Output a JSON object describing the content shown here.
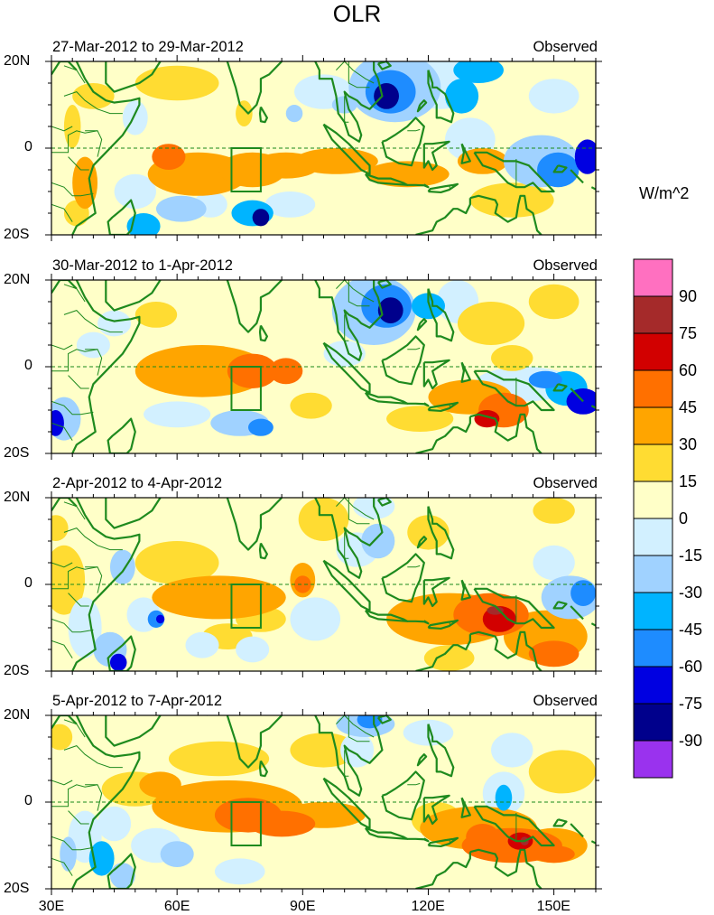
{
  "figure": {
    "title": "OLR",
    "units": "W/m^2",
    "lat_labels": [
      "20N",
      "0",
      "20S"
    ],
    "lon_labels": [
      "30E",
      "60E",
      "90E",
      "120E",
      "150E"
    ]
  },
  "colorbar": {
    "labels": [
      "90",
      "75",
      "60",
      "45",
      "30",
      "15",
      "0",
      "-15",
      "-30",
      "-45",
      "-60",
      "-75",
      "-90"
    ],
    "colors": [
      "#ff70c0",
      "#a52a2a",
      "#d20000",
      "#ff7000",
      "#ffa500",
      "#ffdc32",
      "#ffffc8",
      "#d2f0ff",
      "#a0d2ff",
      "#00b4ff",
      "#1e8cff",
      "#0000e1",
      "#00008c",
      "#9a32ee"
    ]
  },
  "panels": [
    {
      "date": "27-Mar-2012 to 29-Mar-2012",
      "tag": "Observed",
      "blobs": [
        [
          35,
          5,
          2,
          5,
          15
        ],
        [
          38,
          -8,
          3,
          6,
          30
        ],
        [
          50,
          7,
          3,
          4,
          -15
        ],
        [
          50,
          -10,
          5,
          4,
          -15
        ],
        [
          52,
          -18,
          4,
          3,
          -45
        ],
        [
          65,
          -6,
          12,
          5,
          30
        ],
        [
          58,
          -2,
          4,
          3,
          45
        ],
        [
          78,
          -5,
          8,
          4,
          30
        ],
        [
          76,
          8,
          2,
          3,
          15
        ],
        [
          86,
          -4,
          8,
          3,
          30
        ],
        [
          98,
          -3,
          10,
          3,
          30
        ],
        [
          115,
          -6,
          10,
          3,
          30
        ],
        [
          133,
          -3,
          6,
          3,
          30
        ],
        [
          112,
          14,
          11,
          8,
          -30
        ],
        [
          111,
          13,
          6,
          5,
          -60
        ],
        [
          110,
          12,
          3,
          3,
          -90
        ],
        [
          123,
          15,
          8,
          6,
          -15
        ],
        [
          128,
          12,
          4,
          4,
          -45
        ],
        [
          132,
          18,
          6,
          3,
          -45
        ],
        [
          130,
          2,
          6,
          5,
          -15
        ],
        [
          147,
          -3,
          9,
          6,
          -30
        ],
        [
          151,
          -5,
          5,
          4,
          -60
        ],
        [
          158,
          -2,
          3,
          4,
          -75
        ],
        [
          61,
          -14,
          6,
          3,
          -30
        ],
        [
          78,
          -15,
          5,
          3,
          -45
        ],
        [
          80,
          -16,
          2,
          2,
          -90
        ],
        [
          68,
          -13,
          4,
          3,
          -15
        ],
        [
          87,
          -13,
          6,
          3,
          -15
        ],
        [
          140,
          -12,
          10,
          4,
          15
        ],
        [
          95,
          13,
          7,
          4,
          -15
        ],
        [
          100,
          10,
          3,
          2,
          -30
        ],
        [
          88,
          8,
          2,
          2,
          -30
        ],
        [
          60,
          15,
          10,
          4,
          15
        ],
        [
          40,
          12,
          5,
          3,
          15
        ],
        [
          36,
          -15,
          3,
          3,
          15
        ],
        [
          150,
          12,
          6,
          4,
          -15
        ]
      ]
    },
    {
      "date": "30-Mar-2012 to 1-Apr-2012",
      "tag": "Observed",
      "blobs": [
        [
          33,
          -12,
          4,
          5,
          -30
        ],
        [
          31,
          -13,
          2,
          3,
          -75
        ],
        [
          45,
          10,
          4,
          3,
          -15
        ],
        [
          55,
          12,
          5,
          3,
          15
        ],
        [
          66,
          -1,
          16,
          6,
          30
        ],
        [
          78,
          -1,
          6,
          4,
          45
        ],
        [
          86,
          -1,
          4,
          3,
          45
        ],
        [
          60,
          -11,
          8,
          3,
          -15
        ],
        [
          75,
          -13,
          7,
          3,
          -30
        ],
        [
          80,
          -14,
          3,
          2,
          -60
        ],
        [
          100,
          3,
          5,
          3,
          -15
        ],
        [
          107,
          13,
          10,
          8,
          -30
        ],
        [
          110,
          14,
          6,
          5,
          -60
        ],
        [
          111,
          13,
          3,
          3,
          -90
        ],
        [
          120,
          14,
          4,
          3,
          -45
        ],
        [
          127,
          15,
          5,
          5,
          -15
        ],
        [
          135,
          10,
          8,
          5,
          15
        ],
        [
          150,
          15,
          6,
          4,
          15
        ],
        [
          130,
          -7,
          10,
          4,
          30
        ],
        [
          138,
          -10,
          6,
          4,
          45
        ],
        [
          134,
          -12,
          3,
          2,
          60
        ],
        [
          143,
          -4,
          12,
          4,
          -15
        ],
        [
          153,
          -5,
          5,
          4,
          -45
        ],
        [
          157,
          -8,
          4,
          3,
          -75
        ],
        [
          148,
          -3,
          4,
          2,
          -60
        ],
        [
          140,
          2,
          5,
          3,
          15
        ],
        [
          92,
          -9,
          5,
          3,
          15
        ],
        [
          118,
          -12,
          8,
          3,
          15
        ],
        [
          40,
          5,
          4,
          3,
          -15
        ]
      ]
    },
    {
      "date": "2-Apr-2012 to 4-Apr-2012",
      "tag": "Observed",
      "blobs": [
        [
          31,
          13,
          3,
          3,
          15
        ],
        [
          33,
          1,
          5,
          8,
          15
        ],
        [
          38,
          -10,
          4,
          7,
          -15
        ],
        [
          44,
          -15,
          4,
          4,
          -30
        ],
        [
          46,
          -18,
          2,
          2,
          -75
        ],
        [
          47,
          4,
          3,
          4,
          -30
        ],
        [
          52,
          -7,
          4,
          4,
          -15
        ],
        [
          55,
          -8,
          2,
          2,
          -60
        ],
        [
          56,
          -8,
          1,
          1,
          -75
        ],
        [
          60,
          5,
          10,
          5,
          15
        ],
        [
          70,
          -3,
          16,
          5,
          30
        ],
        [
          90,
          1,
          3,
          4,
          30
        ],
        [
          90,
          0,
          2,
          2,
          45
        ],
        [
          80,
          -8,
          6,
          3,
          15
        ],
        [
          72,
          -12,
          6,
          3,
          15
        ],
        [
          66,
          -14,
          4,
          3,
          -15
        ],
        [
          78,
          -15,
          4,
          3,
          -15
        ],
        [
          93,
          -8,
          6,
          5,
          -15
        ],
        [
          95,
          15,
          6,
          5,
          15
        ],
        [
          103,
          8,
          5,
          4,
          -15
        ],
        [
          108,
          10,
          4,
          4,
          -30
        ],
        [
          107,
          18,
          5,
          3,
          -15
        ],
        [
          125,
          -8,
          15,
          6,
          30
        ],
        [
          135,
          -7,
          9,
          5,
          45
        ],
        [
          137,
          -8,
          4,
          3,
          60
        ],
        [
          136,
          -6,
          2,
          1,
          75
        ],
        [
          148,
          -12,
          10,
          6,
          30
        ],
        [
          150,
          -16,
          6,
          3,
          45
        ],
        [
          150,
          5,
          5,
          4,
          -15
        ],
        [
          154,
          -3,
          7,
          5,
          -30
        ],
        [
          157,
          -2,
          3,
          3,
          -60
        ],
        [
          125,
          -17,
          6,
          3,
          15
        ],
        [
          120,
          12,
          5,
          4,
          15
        ],
        [
          150,
          17,
          5,
          3,
          15
        ]
      ]
    },
    {
      "date": "5-Apr-2012 to 7-Apr-2012",
      "tag": "Observed",
      "blobs": [
        [
          32,
          15,
          3,
          3,
          15
        ],
        [
          38,
          -8,
          4,
          6,
          -15
        ],
        [
          42,
          -13,
          3,
          4,
          -45
        ],
        [
          34,
          -12,
          2,
          4,
          -30
        ],
        [
          47,
          -17,
          3,
          3,
          -30
        ],
        [
          45,
          -5,
          4,
          4,
          -15
        ],
        [
          50,
          3,
          8,
          4,
          15
        ],
        [
          56,
          4,
          5,
          3,
          30
        ],
        [
          72,
          -1,
          18,
          6,
          30
        ],
        [
          77,
          -3,
          8,
          4,
          45
        ],
        [
          85,
          -5,
          8,
          3,
          45
        ],
        [
          95,
          -3,
          10,
          3,
          30
        ],
        [
          70,
          10,
          12,
          4,
          15
        ],
        [
          55,
          -10,
          6,
          4,
          -15
        ],
        [
          60,
          -12,
          4,
          3,
          -30
        ],
        [
          75,
          -16,
          6,
          3,
          -15
        ],
        [
          95,
          12,
          8,
          4,
          15
        ],
        [
          103,
          12,
          4,
          4,
          -15
        ],
        [
          105,
          18,
          7,
          3,
          -30
        ],
        [
          106,
          19,
          3,
          2,
          -60
        ],
        [
          120,
          16,
          6,
          3,
          -15
        ],
        [
          132,
          -6,
          14,
          5,
          30
        ],
        [
          140,
          -10,
          12,
          4,
          45
        ],
        [
          142,
          -9,
          3,
          2,
          60
        ],
        [
          143,
          -9,
          1,
          1,
          75
        ],
        [
          133,
          -8,
          4,
          3,
          45
        ],
        [
          150,
          -10,
          8,
          4,
          30
        ],
        [
          150,
          -12,
          5,
          2,
          45
        ],
        [
          138,
          2,
          5,
          5,
          -15
        ],
        [
          138,
          1,
          2,
          3,
          -45
        ],
        [
          152,
          7,
          8,
          5,
          15
        ],
        [
          140,
          12,
          5,
          4,
          -15
        ],
        [
          122,
          -4,
          6,
          4,
          15
        ]
      ]
    }
  ]
}
